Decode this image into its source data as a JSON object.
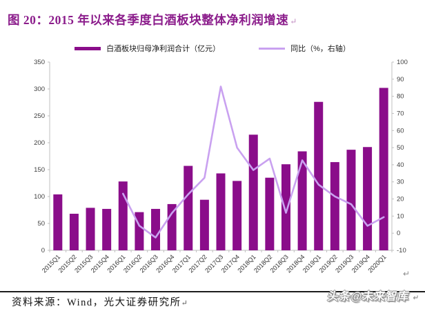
{
  "figure": {
    "title": "图 20：2015 年以来各季度白酒板块整体净利润增速"
  },
  "marks": {
    "pilcrow": "↵"
  },
  "legend": [
    {
      "label": "白酒板块归母净利润合计（亿元）",
      "color": "#8A0D8A",
      "type": "bar"
    },
    {
      "label": "同比（%，右轴）",
      "color": "#C9A1F0",
      "type": "line"
    }
  ],
  "chart_data": {
    "type": "bar",
    "title": "图 20：2015 年以来各季度白酒板块整体净利润增速",
    "categories": [
      "2015Q1",
      "2015Q2",
      "2015Q3",
      "2015Q4",
      "2016Q1",
      "2016Q2",
      "2016Q3",
      "2016Q4",
      "2017Q1",
      "2017Q2",
      "2017Q3",
      "2017Q4",
      "2018Q1",
      "2018Q2",
      "2018Q3",
      "2018Q4",
      "2019Q1",
      "2019Q2",
      "2019Q3",
      "2019Q4",
      "2020Q1"
    ],
    "series": [
      {
        "name": "白酒板块归母净利润合计（亿元）",
        "type": "bar",
        "axis": "left",
        "color": "#8A0D8A",
        "values": [
          104,
          68,
          79,
          77,
          128,
          71,
          77,
          86,
          157,
          94,
          143,
          129,
          215,
          135,
          160,
          184,
          276,
          164,
          187,
          192,
          302
        ]
      },
      {
        "name": "同比（%，右轴）",
        "type": "line",
        "axis": "right",
        "color": "#C9A1F0",
        "start_index": 4,
        "values": [
          23.1,
          4.4,
          -2.5,
          11.7,
          22.7,
          32.4,
          85.7,
          50.0,
          36.9,
          43.6,
          11.9,
          42.6,
          28.4,
          21.5,
          16.9,
          4.3,
          9.4
        ]
      }
    ],
    "left_axis": {
      "min": 0,
      "max": 350,
      "step": 50,
      "ticks": [
        350,
        300,
        250,
        200,
        150,
        100,
        50,
        0
      ]
    },
    "right_axis": {
      "min": -10,
      "max": 100,
      "step": 10,
      "ticks": [
        100,
        90,
        80,
        70,
        60,
        50,
        40,
        30,
        20,
        10,
        0,
        -10
      ]
    },
    "grid": false,
    "legend_position": "top",
    "axis_color": "#BFBFBF",
    "label_color": "#404040"
  },
  "footer": {
    "source": "资料来源：Wind，光大证券研究所",
    "watermark": "头条@未来智库"
  }
}
